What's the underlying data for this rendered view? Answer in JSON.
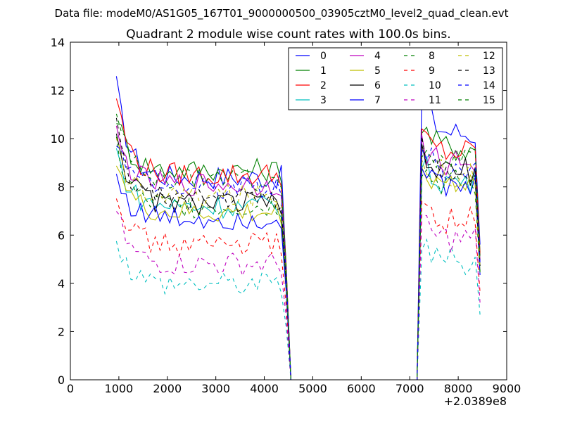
{
  "figure": {
    "suptitle": "Data file: modeM0/AS1G05_167T01_9000000500_03905cztM0_level2_quad_clean.evt"
  },
  "chart_data": {
    "type": "line",
    "title": "Quadrant 2 module wise count rates with 100.0s bins.",
    "xlabel": "",
    "ylabel": "",
    "x_offset_label": "+2.0389e8",
    "xlim": [
      0,
      9000
    ],
    "ylim": [
      0,
      14
    ],
    "xticks": [
      0,
      1000,
      2000,
      3000,
      4000,
      5000,
      6000,
      7000,
      8000,
      9000
    ],
    "yticks": [
      0,
      2,
      4,
      6,
      8,
      10,
      12,
      14
    ],
    "grid": false,
    "legend": {
      "position": "top-right",
      "columns": 4
    },
    "x": [
      950,
      1050,
      1150,
      1250,
      1350,
      1450,
      1550,
      1650,
      1750,
      1850,
      1950,
      2050,
      2150,
      2250,
      2350,
      2450,
      2550,
      2650,
      2750,
      2850,
      2950,
      3050,
      3150,
      3250,
      3350,
      3450,
      3550,
      3650,
      3750,
      3850,
      3950,
      4050,
      4150,
      4250,
      4350,
      4450,
      4550,
      4650,
      4750,
      4850,
      4950,
      5050,
      5150,
      5250,
      5350,
      5450,
      5550,
      5650,
      5750,
      5850,
      5950,
      6050,
      6150,
      6250,
      6350,
      6450,
      6550,
      6650,
      6750,
      6850,
      6950,
      7050,
      7150,
      7250,
      7350,
      7450,
      7550,
      7650,
      7750,
      7850,
      7950,
      8050,
      8150,
      8250,
      8350,
      8450
    ],
    "series": [
      {
        "name": "0",
        "color": "#0000ff",
        "dash": "solid",
        "plateau1": 8.4,
        "peak1": 12.2,
        "plateau2": 10.2,
        "peak2": 11.8
      },
      {
        "name": "1",
        "color": "#008000",
        "dash": "solid",
        "plateau1": 8.7,
        "peak1": 11.0,
        "plateau2": 9.6,
        "peak2": 10.6
      },
      {
        "name": "2",
        "color": "#ff0000",
        "dash": "solid",
        "plateau1": 8.5,
        "peak1": 11.8,
        "plateau2": 9.4,
        "peak2": 10.1
      },
      {
        "name": "3",
        "color": "#00bfbf",
        "dash": "solid",
        "plateau1": 7.2,
        "peak1": 9.5,
        "plateau2": 8.2,
        "peak2": 9.0
      },
      {
        "name": "4",
        "color": "#bf00bf",
        "dash": "solid",
        "plateau1": 8.1,
        "peak1": 10.2,
        "plateau2": 9.0,
        "peak2": 9.7
      },
      {
        "name": "5",
        "color": "#bfbf00",
        "dash": "solid",
        "plateau1": 6.9,
        "peak1": 9.3,
        "plateau2": 8.2,
        "peak2": 8.9
      },
      {
        "name": "6",
        "color": "#000000",
        "dash": "solid",
        "plateau1": 7.3,
        "peak1": 10.4,
        "plateau2": 8.6,
        "peak2": 9.2
      },
      {
        "name": "7",
        "color": "#0000ff",
        "dash": "solid",
        "plateau1": 6.7,
        "peak1": 8.5,
        "plateau2": 7.9,
        "peak2": 8.7
      },
      {
        "name": "8",
        "color": "#008000",
        "dash": "dashed",
        "plateau1": 7.2,
        "peak1": 9.8,
        "plateau2": 8.1,
        "peak2": 8.9
      },
      {
        "name": "9",
        "color": "#ff0000",
        "dash": "dashed",
        "plateau1": 5.6,
        "peak1": 8.0,
        "plateau2": 6.6,
        "peak2": 7.2
      },
      {
        "name": "10",
        "color": "#00bfbf",
        "dash": "dashed",
        "plateau1": 4.0,
        "peak1": 6.0,
        "plateau2": 4.9,
        "peak2": 5.7
      },
      {
        "name": "11",
        "color": "#bf00bf",
        "dash": "dashed",
        "plateau1": 4.8,
        "peak1": 7.0,
        "plateau2": 5.8,
        "peak2": 6.5
      },
      {
        "name": "12",
        "color": "#bfbf00",
        "dash": "dashed",
        "plateau1": 7.6,
        "peak1": 9.8,
        "plateau2": 8.5,
        "peak2": 9.3
      },
      {
        "name": "13",
        "color": "#000000",
        "dash": "dashed",
        "plateau1": 7.5,
        "peak1": 10.4,
        "plateau2": 8.6,
        "peak2": 9.6
      },
      {
        "name": "14",
        "color": "#0000ff",
        "dash": "dashed",
        "plateau1": 8.0,
        "peak1": 10.0,
        "plateau2": 8.8,
        "peak2": 9.6
      },
      {
        "name": "15",
        "color": "#008000",
        "dash": "dashed",
        "plateau1": 8.3,
        "peak1": 11.1,
        "plateau2": 9.1,
        "peak2": 9.8
      }
    ],
    "segments": [
      {
        "start": 950,
        "end": 4450,
        "value": "plateau1",
        "leading_peak": "peak1"
      },
      {
        "start": 4550,
        "end": 7150,
        "value": 0
      },
      {
        "start": 7250,
        "end": 8450,
        "value": "plateau2",
        "leading_peak": "peak2"
      }
    ]
  }
}
